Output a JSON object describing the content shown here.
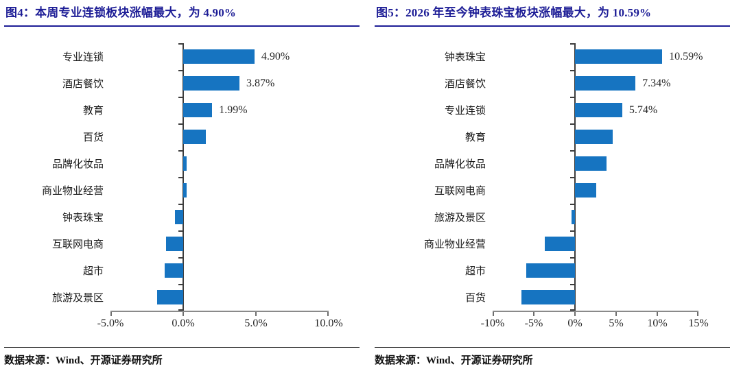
{
  "colors": {
    "bar": "#1674C1",
    "title": "#1D1D96",
    "zero_line": "#3d3d3d",
    "axis_line": "#8a8a8a",
    "text": "#262626"
  },
  "chart_data": [
    {
      "type": "bar",
      "orientation": "horizontal",
      "title": "图4：本周专业连锁板块涨幅最大，为 4.90%",
      "categories": [
        "专业连锁",
        "酒店餐饮",
        "教育",
        "百货",
        "品牌化妆品",
        "商业物业经营",
        "钟表珠宝",
        "互联网电商",
        "超市",
        "旅游及景区"
      ],
      "values": [
        4.9,
        3.87,
        1.99,
        1.55,
        0.25,
        0.24,
        -0.57,
        -1.18,
        -1.27,
        -1.8
      ],
      "data_labels": [
        "4.90%",
        "3.87%",
        "1.99%",
        "",
        "",
        "",
        "",
        "",
        "",
        ""
      ],
      "xlim": [
        -5,
        10
      ],
      "xticks": [
        {
          "value": -5,
          "label": "-5.0%"
        },
        {
          "value": 0,
          "label": "0.0%"
        },
        {
          "value": 5,
          "label": "5.0%"
        },
        {
          "value": 10,
          "label": "10.0%"
        }
      ],
      "grid": false,
      "legend": false,
      "source": "数据来源：Wind、开源证券研究所"
    },
    {
      "type": "bar",
      "orientation": "horizontal",
      "title": "图5：2026 年至今钟表珠宝板块涨幅最大，为 10.59%",
      "categories": [
        "钟表珠宝",
        "酒店餐饮",
        "专业连锁",
        "教育",
        "品牌化妆品",
        "互联网电商",
        "旅游及景区",
        "商业物业经营",
        "超市",
        "百货"
      ],
      "values": [
        10.59,
        7.34,
        5.74,
        4.55,
        3.85,
        2.6,
        -0.4,
        -3.65,
        -5.9,
        -6.5
      ],
      "data_labels": [
        "10.59%",
        "7.34%",
        "5.74%",
        "",
        "",
        "",
        "",
        "",
        "",
        ""
      ],
      "xlim": [
        -10,
        15
      ],
      "xticks": [
        {
          "value": -10,
          "label": "-10%"
        },
        {
          "value": -5,
          "label": "-5%"
        },
        {
          "value": 0,
          "label": "0%"
        },
        {
          "value": 5,
          "label": "5%"
        },
        {
          "value": 10,
          "label": "10%"
        },
        {
          "value": 15,
          "label": "15%"
        }
      ],
      "grid": false,
      "legend": false,
      "source": "数据来源：Wind、开源证券研究所"
    }
  ]
}
